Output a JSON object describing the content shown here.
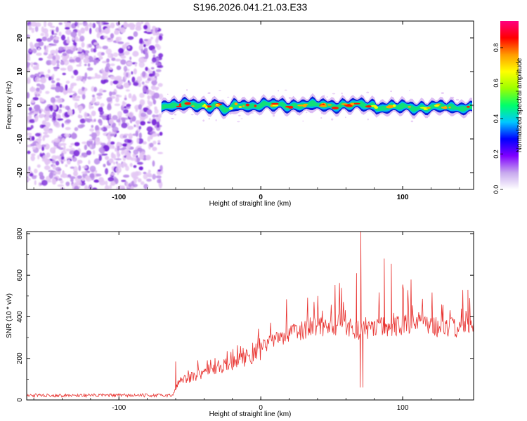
{
  "title": "S196.2026.041.21.03.E33",
  "colors": {
    "snr_line": "#e8322f",
    "axis": "#000000",
    "background": "#ffffff",
    "scatter_light": "#e3c6f4",
    "scatter_mid": "#b98ae9",
    "scatter_dark": "#7a28d9"
  },
  "chart_data": [
    {
      "type": "heatmap",
      "xlabel": "Height of straight line (km)",
      "ylabel": "Frequency (Hz)",
      "xlim": [
        -165,
        150
      ],
      "ylim": [
        -25,
        25
      ],
      "xticks": [
        -100,
        0,
        100
      ],
      "xtick_labels": [
        "-100",
        "0",
        "100"
      ],
      "yticks": [
        20,
        10,
        0,
        -10,
        -20
      ],
      "ytick_labels": [
        "20",
        "10",
        "0",
        "-10",
        "-20"
      ],
      "noise_region_x": [
        -165,
        -70
      ],
      "signal_band_x": [
        -70,
        150
      ],
      "signal_band_center_hz": 0,
      "colorbar": {
        "label": "Normalized spectral amplitude",
        "range": [
          0.0,
          0.95
        ],
        "ticks": [
          0.0,
          0.2,
          0.4,
          0.6,
          0.8
        ],
        "tick_labels": [
          "0.0",
          "0.2",
          "0.4",
          "0.6",
          "0.8"
        ],
        "colors": [
          "#ffffff",
          "#c7a8ee",
          "#8000ff",
          "#0000ff",
          "#00c8ff",
          "#00ff6a",
          "#9bff00",
          "#ffff00",
          "#ff9b00",
          "#ff0000",
          "#ff0080"
        ]
      }
    },
    {
      "type": "line",
      "xlabel": "Height of straight line (km)",
      "ylabel": "SNR (10 * v/v)",
      "xlim": [
        -165,
        150
      ],
      "ylim": [
        0,
        810
      ],
      "xticks": [
        -100,
        0,
        100
      ],
      "xtick_labels": [
        "-100",
        "0",
        "100"
      ],
      "yticks": [
        0,
        200,
        400,
        600,
        800
      ],
      "ytick_labels": [
        "0",
        "200",
        "400",
        "600",
        "800"
      ],
      "series": [
        {
          "name": "SNR",
          "x": [
            -165,
            -140,
            -120,
            -100,
            -80,
            -62,
            -58,
            -50,
            -40,
            -30,
            -20,
            -10,
            0,
            10,
            20,
            30,
            40,
            50,
            60,
            70,
            80,
            90,
            100,
            110,
            120,
            130,
            140,
            150
          ],
          "values": [
            22,
            22,
            22,
            22,
            22,
            22,
            90,
            110,
            135,
            160,
            190,
            215,
            250,
            290,
            320,
            340,
            350,
            365,
            370,
            330,
            360,
            360,
            365,
            370,
            360,
            350,
            355,
            360
          ],
          "spikes": [
            {
              "x": 70.5,
              "value": 810
            },
            {
              "x": 72,
              "value": 60
            },
            {
              "x": 70,
              "value": 60
            },
            {
              "x": 87,
              "value": 680
            },
            {
              "x": 92,
              "value": 655
            },
            {
              "x": 67.5,
              "value": 610
            },
            {
              "x": 146,
              "value": 530
            },
            {
              "x": -60,
              "value": 185
            }
          ]
        }
      ]
    }
  ]
}
